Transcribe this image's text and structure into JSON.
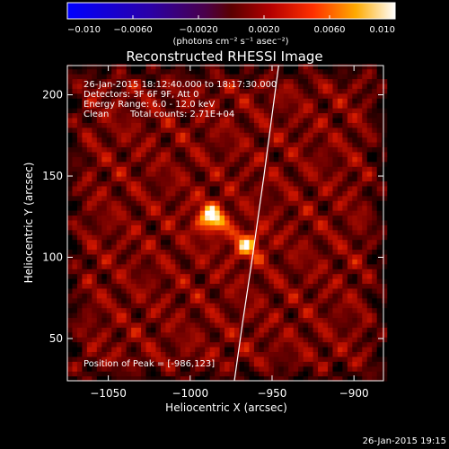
{
  "chart_data": {
    "type": "heatmap",
    "title": "Reconstructed RHESSI Image",
    "xlabel": "Heliocentric X (arcsec)",
    "ylabel": "Heliocentric Y (arcsec)",
    "xlim": [
      -1075,
      -882
    ],
    "ylim": [
      24,
      218
    ],
    "x_ticks": [
      -1050,
      -1000,
      -950,
      -900
    ],
    "x_tick_labels": [
      "−1050",
      "−1000",
      "−950",
      "−900"
    ],
    "y_ticks": [
      50,
      100,
      150,
      200
    ],
    "y_tick_labels": [
      "50",
      "100",
      "150",
      "200"
    ],
    "colorbar": {
      "colormap": "fire",
      "range": [
        -0.01,
        0.01
      ],
      "ticks": [
        -0.01,
        -0.006,
        -0.002,
        0.002,
        0.006,
        0.01
      ],
      "tick_labels": [
        "−0.010",
        "−0.0060",
        "−0.0020",
        "0.0020",
        "0.0060",
        "0.010"
      ],
      "units_label": "(photons cm⁻² s⁻¹ asec⁻²)"
    },
    "sources": [
      {
        "x": -987,
        "y": 124,
        "intensity": 0.0098
      },
      {
        "x": -965,
        "y": 108,
        "intensity": 0.008
      }
    ],
    "background_level": 0.0032,
    "limb": [
      {
        "x": -973,
        "y": 24
      },
      {
        "x": -968,
        "y": 60
      },
      {
        "x": -962,
        "y": 100
      },
      {
        "x": -955,
        "y": 150
      },
      {
        "x": -946,
        "y": 218
      }
    ],
    "annotations": [
      "26-Jan-2015 18:12:40.000 to 18:17:30.000",
      "Detectors: 3F 6F 9F, Att 0",
      "Energy Range: 6.0 - 12.0 keV",
      "Clean",
      "Total counts: 2.71E+04",
      "Position of Peak = [-986,123]"
    ]
  },
  "footer": {
    "timestamp": "26-Jan-2015 19:15"
  },
  "colors": {
    "background": "#000000",
    "text": "#ffffff",
    "limb": "#ffffff"
  }
}
